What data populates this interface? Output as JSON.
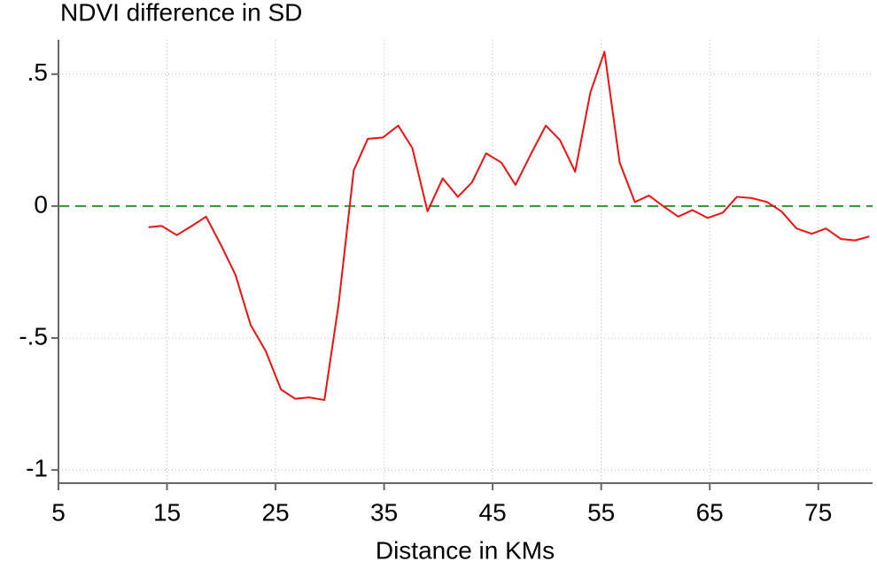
{
  "chart_data": {
    "type": "line",
    "title": "NDVI difference in SD",
    "x_label": "Distance in KMs",
    "x": [
      13.3,
      14.5,
      15.9,
      17.3,
      18.6,
      20.0,
      21.3,
      22.7,
      24.1,
      25.5,
      26.8,
      28.1,
      29.5,
      30.8,
      32.2,
      33.5,
      34.9,
      36.3,
      37.6,
      39.0,
      40.4,
      41.8,
      43.1,
      44.4,
      45.8,
      47.1,
      48.5,
      49.9,
      51.2,
      52.6,
      54.0,
      55.3,
      56.7,
      58.1,
      59.4,
      60.7,
      62.1,
      63.4,
      64.8,
      66.2,
      67.5,
      68.9,
      70.3,
      71.6,
      73.0,
      74.4,
      75.7,
      77.1,
      78.4,
      79.7
    ],
    "series": [
      {
        "color": "#ee1111",
        "values": [
          -0.08,
          -0.075,
          -0.11,
          -0.075,
          -0.04,
          -0.15,
          -0.26,
          -0.45,
          -0.55,
          -0.695,
          -0.73,
          -0.725,
          -0.735,
          -0.375,
          0.135,
          0.255,
          0.26,
          0.305,
          0.22,
          -0.02,
          0.105,
          0.035,
          0.09,
          0.2,
          0.165,
          0.08,
          0.195,
          0.305,
          0.25,
          0.13,
          0.43,
          0.585,
          0.165,
          0.015,
          0.04,
          0.0,
          -0.04,
          -0.015,
          -0.045,
          -0.025,
          0.035,
          0.03,
          0.015,
          -0.02,
          -0.085,
          -0.105,
          -0.085,
          -0.125,
          -0.13,
          -0.115
        ]
      }
    ],
    "reference_line": {
      "value": 0,
      "color": "#229922"
    },
    "xlim": [
      5,
      80
    ],
    "xticks": [
      5,
      15,
      25,
      35,
      45,
      55,
      65,
      75
    ],
    "ylim": [
      -1.05,
      0.63
    ],
    "yticks": [
      {
        "value": 0.5,
        "label": ".5"
      },
      0,
      {
        "value": -0.5,
        "label": "-.5"
      },
      -1
    ],
    "grid": true
  }
}
